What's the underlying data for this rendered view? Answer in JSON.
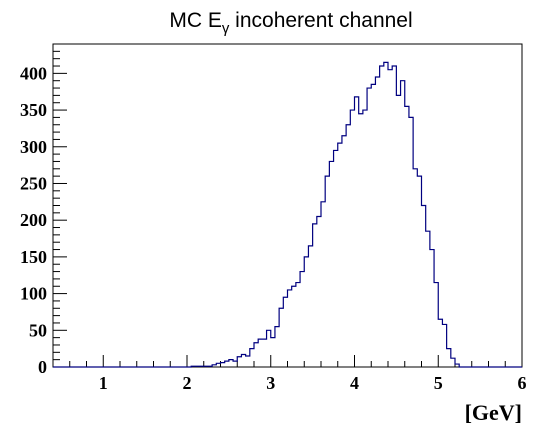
{
  "chart_data": {
    "type": "histogram",
    "title": {
      "main": "MC E",
      "sub": "γ",
      "rest": " incoherent channel"
    },
    "xlabel": "[GeV]",
    "ylabel": "",
    "xlim": [
      0.4,
      6.0
    ],
    "ylim": [
      0,
      440
    ],
    "x_ticks": [
      1,
      2,
      3,
      4,
      5,
      6
    ],
    "y_ticks": [
      0,
      50,
      100,
      150,
      200,
      250,
      300,
      350,
      400
    ],
    "grid": false,
    "line_color": "#000080",
    "bins": {
      "start": 2.0,
      "width": 0.05,
      "values": [
        0,
        1,
        1,
        1,
        1,
        1,
        3,
        5,
        6,
        8,
        10,
        8,
        14,
        17,
        15,
        25,
        33,
        38,
        38,
        50,
        40,
        55,
        80,
        95,
        105,
        110,
        115,
        130,
        150,
        165,
        195,
        205,
        225,
        260,
        280,
        295,
        305,
        315,
        330,
        350,
        368,
        345,
        350,
        380,
        385,
        395,
        410,
        415,
        405,
        410,
        370,
        390,
        355,
        340,
        270,
        260,
        220,
        185,
        160,
        115,
        65,
        58,
        25,
        12,
        4,
        0
      ]
    }
  }
}
